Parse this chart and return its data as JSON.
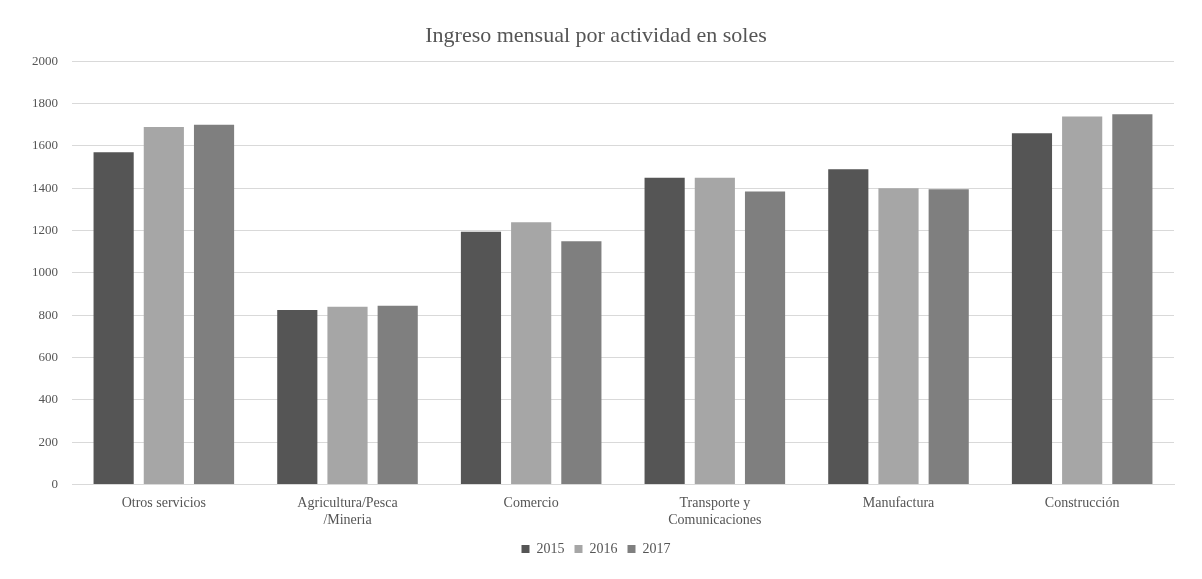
{
  "chart_data": {
    "type": "bar",
    "title": "Ingreso mensual por actividad en soles",
    "categories": [
      "Otros servicios",
      "Agricultura/Pesca /Mineria",
      "Comercio",
      "Transporte y Comunicaciones",
      "Manufactura",
      "Construcción"
    ],
    "series": [
      {
        "name": "2015",
        "color": "#555555",
        "values": [
          1570,
          825,
          1195,
          1450,
          1490,
          1660
        ]
      },
      {
        "name": "2016",
        "color": "#a6a6a6",
        "values": [
          1690,
          840,
          1240,
          1450,
          1400,
          1740
        ]
      },
      {
        "name": "2017",
        "color": "#7f7f7f",
        "values": [
          1700,
          845,
          1150,
          1385,
          1395,
          1750
        ]
      }
    ],
    "ylim": [
      0,
      2000
    ],
    "yticks": [
      0,
      200,
      400,
      600,
      800,
      1000,
      1200,
      1400,
      1600,
      1800,
      2000
    ],
    "grid": "y",
    "legend": "bottom"
  }
}
